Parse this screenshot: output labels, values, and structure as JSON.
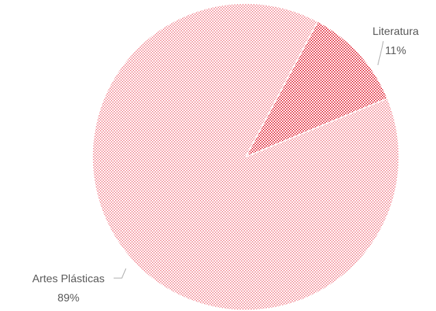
{
  "chart_data": {
    "type": "pie",
    "categories": [
      "Literatura",
      "Artes Plásticas"
    ],
    "values": [
      11,
      89
    ],
    "value_labels": [
      "11%",
      "89%"
    ],
    "colors": [
      "#e32b3c",
      "#ec5564"
    ]
  }
}
